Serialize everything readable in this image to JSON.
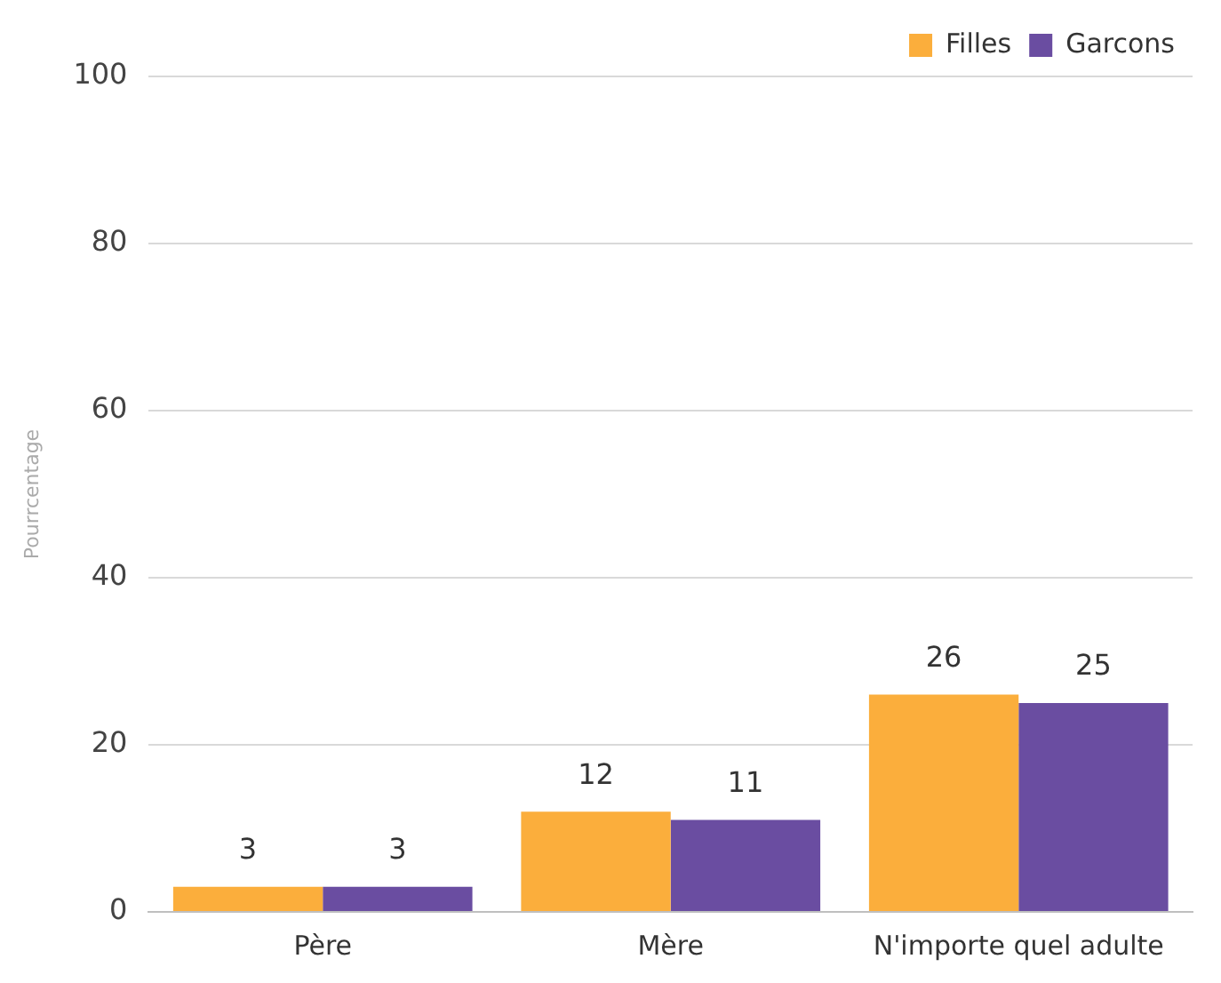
{
  "chart_data": {
    "type": "bar",
    "ylabel": "Pourrcentage",
    "categories": [
      "Père",
      "Mère",
      "N'importe quel adulte"
    ],
    "series": [
      {
        "name": "Filles",
        "color": "#fbae3c",
        "values": [
          3,
          12,
          26
        ]
      },
      {
        "name": "Garcons",
        "color": "#6a4da1",
        "values": [
          3,
          11,
          25
        ]
      }
    ],
    "ylim": [
      0,
      100
    ],
    "yticks": [
      0,
      20,
      40,
      60,
      80,
      100
    ],
    "grid": "y",
    "legend": "top right",
    "data_labels": true
  }
}
